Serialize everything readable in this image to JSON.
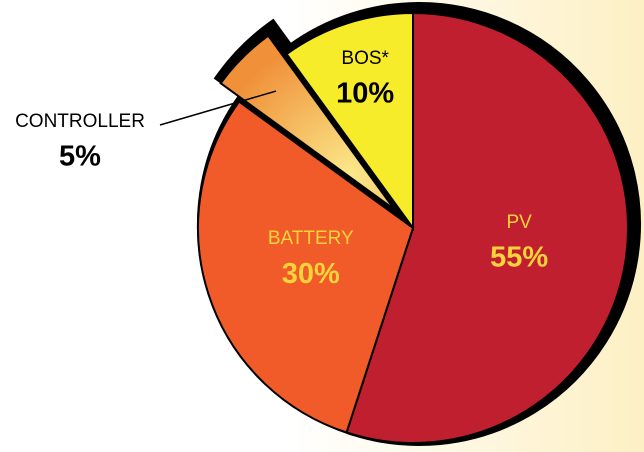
{
  "chart_data": {
    "type": "pie",
    "categories": [
      "PV",
      "BATTERY",
      "CONTROLLER",
      "BOS*"
    ],
    "values": [
      55,
      30,
      5,
      10
    ],
    "value_labels": [
      "55%",
      "30%",
      "5%",
      "10%"
    ],
    "colors": [
      "#c01f2f",
      "#f15a29",
      "#f0913a",
      "#f7ec2a"
    ],
    "explode": [
      false,
      false,
      true,
      false
    ]
  }
}
